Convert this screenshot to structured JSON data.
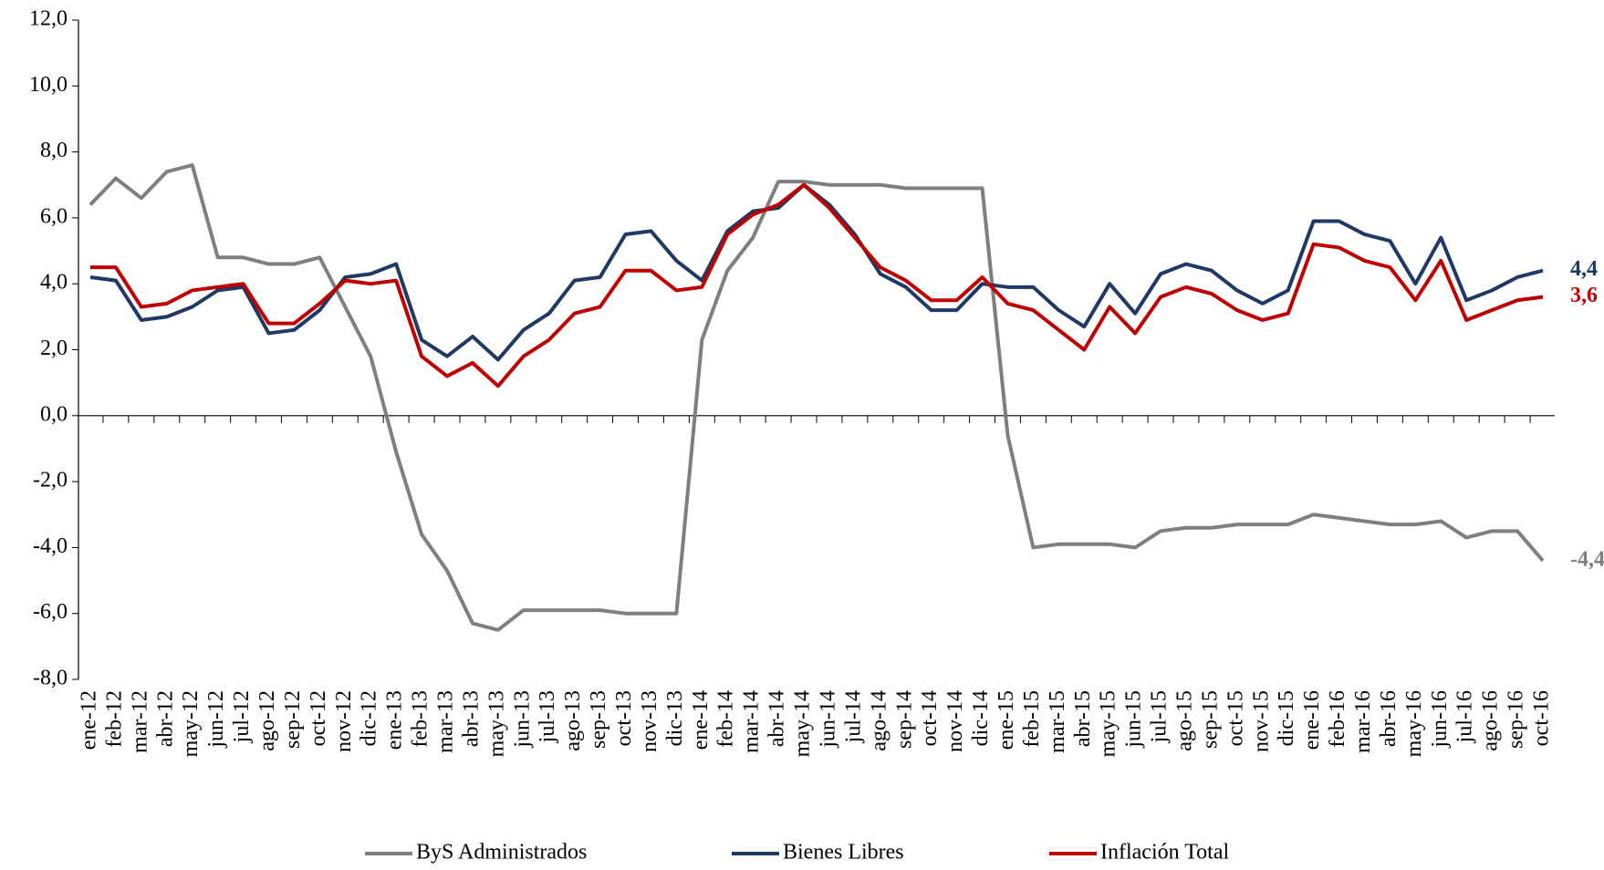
{
  "chart_data": {
    "type": "line",
    "categories": [
      "ene-12",
      "feb-12",
      "mar-12",
      "abr-12",
      "may-12",
      "jun-12",
      "jul-12",
      "ago-12",
      "sep-12",
      "oct-12",
      "nov-12",
      "dic-12",
      "ene-13",
      "feb-13",
      "mar-13",
      "abr-13",
      "may-13",
      "jun-13",
      "jul-13",
      "ago-13",
      "sep-13",
      "oct-13",
      "nov-13",
      "dic-13",
      "ene-14",
      "feb-14",
      "mar-14",
      "abr-14",
      "may-14",
      "jun-14",
      "jul-14",
      "ago-14",
      "sep-14",
      "oct-14",
      "nov-14",
      "dic-14",
      "ene-15",
      "feb-15",
      "mar-15",
      "abr-15",
      "may-15",
      "jun-15",
      "jul-15",
      "ago-15",
      "sep-15",
      "oct-15",
      "nov-15",
      "dic-15",
      "ene-16",
      "feb-16",
      "mar-16",
      "abr-16",
      "may-16",
      "jun-16",
      "jul-16",
      "ago-16",
      "sep-16",
      "oct-16"
    ],
    "series": [
      {
        "name": "ByS Administrados",
        "color": "#7f7f7f",
        "values": [
          6.4,
          7.2,
          6.6,
          7.4,
          7.6,
          4.8,
          4.8,
          4.6,
          4.6,
          4.8,
          3.3,
          1.8,
          -1.1,
          -3.6,
          -4.7,
          -6.3,
          -6.5,
          -5.9,
          -5.9,
          -5.9,
          -5.9,
          -6.0,
          -6.0,
          -6.0,
          2.3,
          4.4,
          5.4,
          7.1,
          7.1,
          7.0,
          7.0,
          7.0,
          6.9,
          6.9,
          6.9,
          6.9,
          -0.6,
          -4.0,
          -3.9,
          -3.9,
          -3.9,
          -4.0,
          -3.5,
          -3.4,
          -3.4,
          -3.3,
          -3.3,
          -3.3,
          -3.0,
          -3.1,
          -3.2,
          -3.3,
          -3.3,
          -3.2,
          -3.7,
          -3.5,
          -3.5,
          -4.4
        ],
        "value_labels": [
          null,
          null,
          null,
          null,
          null,
          null,
          null,
          null,
          null,
          null,
          null,
          null,
          null,
          null,
          null,
          null,
          null,
          null,
          null,
          null,
          null,
          null,
          null,
          null,
          null,
          null,
          null,
          null,
          null,
          null,
          null,
          null,
          null,
          null,
          null,
          null,
          null,
          null,
          null,
          null,
          null,
          null,
          null,
          null,
          null,
          null,
          null,
          null,
          null,
          null,
          null,
          null,
          null,
          null,
          null,
          null,
          null,
          "-4,4"
        ]
      },
      {
        "name": "Bienes Libres",
        "color": "#1f3864",
        "values": [
          4.2,
          4.1,
          2.9,
          3.0,
          3.3,
          3.8,
          3.9,
          2.5,
          2.6,
          3.2,
          4.2,
          4.3,
          4.6,
          2.3,
          1.8,
          2.4,
          1.7,
          2.6,
          3.1,
          4.1,
          4.2,
          5.5,
          5.6,
          4.7,
          4.1,
          5.6,
          6.2,
          6.3,
          7.0,
          6.4,
          5.5,
          4.3,
          3.9,
          3.2,
          3.2,
          4.0,
          3.9,
          3.9,
          3.2,
          2.7,
          4.0,
          3.1,
          4.3,
          4.6,
          4.4,
          3.8,
          3.4,
          3.8,
          5.9,
          5.9,
          5.5,
          5.3,
          4.0,
          5.4,
          3.5,
          3.8,
          4.2,
          4.4
        ],
        "value_labels": [
          null,
          null,
          null,
          null,
          null,
          null,
          null,
          null,
          null,
          null,
          null,
          null,
          null,
          null,
          null,
          null,
          null,
          null,
          null,
          null,
          null,
          null,
          null,
          null,
          null,
          null,
          null,
          null,
          null,
          null,
          null,
          null,
          null,
          null,
          null,
          null,
          null,
          null,
          null,
          null,
          null,
          null,
          null,
          null,
          null,
          null,
          null,
          null,
          null,
          null,
          null,
          null,
          null,
          null,
          null,
          null,
          null,
          "4,4"
        ]
      },
      {
        "name": "Inflación Total",
        "color": "#c00000",
        "values": [
          4.5,
          4.5,
          3.3,
          3.4,
          3.8,
          3.9,
          4.0,
          2.8,
          2.8,
          3.4,
          4.1,
          4.0,
          4.1,
          1.8,
          1.2,
          1.6,
          0.9,
          1.8,
          2.3,
          3.1,
          3.3,
          4.4,
          4.4,
          3.8,
          3.9,
          5.5,
          6.1,
          6.4,
          7.0,
          6.3,
          5.4,
          4.5,
          4.1,
          3.5,
          3.5,
          4.2,
          3.4,
          3.2,
          2.6,
          2.0,
          3.3,
          2.5,
          3.6,
          3.9,
          3.7,
          3.2,
          2.9,
          3.1,
          5.2,
          5.1,
          4.7,
          4.5,
          3.5,
          4.7,
          2.9,
          3.2,
          3.5,
          3.6
        ],
        "value_labels": [
          null,
          null,
          null,
          null,
          null,
          null,
          null,
          null,
          null,
          null,
          null,
          null,
          null,
          null,
          null,
          null,
          null,
          null,
          null,
          null,
          null,
          null,
          null,
          null,
          null,
          null,
          null,
          null,
          null,
          null,
          null,
          null,
          null,
          null,
          null,
          null,
          null,
          null,
          null,
          null,
          null,
          null,
          null,
          null,
          null,
          null,
          null,
          null,
          null,
          null,
          null,
          null,
          null,
          null,
          null,
          null,
          null,
          "3,6"
        ]
      }
    ],
    "ylim": [
      -8,
      12
    ],
    "yticks": [
      {
        "value": -8,
        "label": "-8,0"
      },
      {
        "value": -6,
        "label": "-6,0"
      },
      {
        "value": -4,
        "label": "-4,0"
      },
      {
        "value": -2,
        "label": "-2,0"
      },
      {
        "value": 0,
        "label": "0,0"
      },
      {
        "value": 2,
        "label": "2,0"
      },
      {
        "value": 4,
        "label": "4,0"
      },
      {
        "value": 6,
        "label": "6,0"
      },
      {
        "value": 8,
        "label": "8,0"
      },
      {
        "value": 10,
        "label": "10,0"
      },
      {
        "value": 12,
        "label": "12,0"
      }
    ],
    "grid": false,
    "legend": "bottom"
  }
}
